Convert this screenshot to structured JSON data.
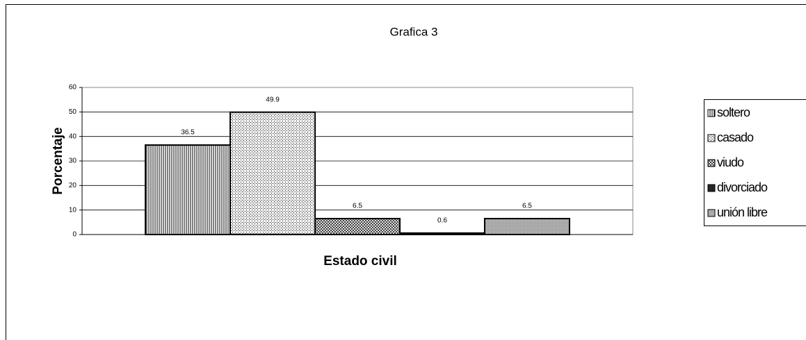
{
  "chart_data": {
    "type": "bar",
    "title": "Grafica 3",
    "x_label": "Estado civil",
    "y_label": "Porcentaje",
    "categories": [
      null
    ],
    "series": [
      {
        "name": "soltero",
        "color": "#000000",
        "pattern": "vertical",
        "values": [
          36.5
        ]
      },
      {
        "name": "casado",
        "color": "#000000",
        "pattern": "dots",
        "values": [
          49.9
        ]
      },
      {
        "name": "viudo",
        "color": "#000000",
        "pattern": "crosshatch",
        "values": [
          6.5
        ]
      },
      {
        "name": "divorciado",
        "color": "#000000",
        "pattern": "dense",
        "values": [
          0.6
        ]
      },
      {
        "name": "unión libre",
        "color": "#000000",
        "pattern": "fine",
        "values": [
          6.5
        ]
      }
    ],
    "ylim": [
      0,
      60
    ],
    "yticks": [
      0,
      10,
      20,
      30,
      40,
      50,
      60
    ],
    "grid": true,
    "legend": "right"
  }
}
